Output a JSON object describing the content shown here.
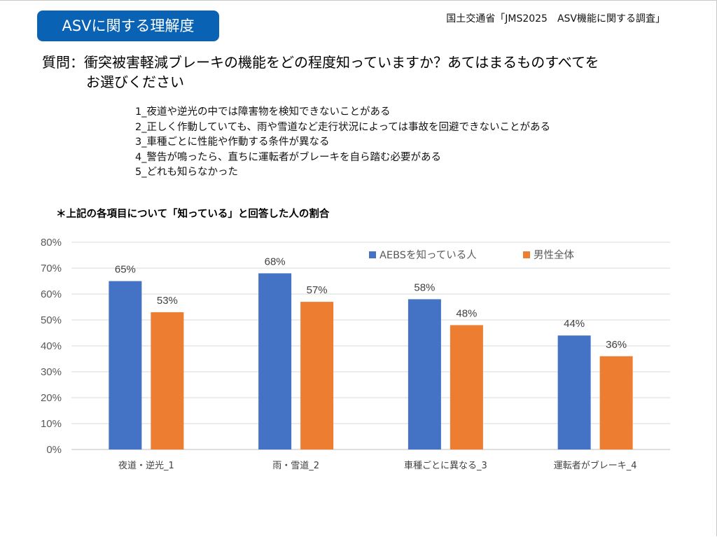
{
  "header": {
    "badge": "ASVに関する理解度",
    "source": "国土交通省「JMS2025　ASV機能に関する調査」"
  },
  "question": {
    "line1": "質問：衝突被害軽減ブレーキの機能をどの程度知っていますか？あてはまるものすべてを",
    "line2": "お選びください"
  },
  "options": [
    "1_夜道や逆光の中では障害物を検知できないことがある",
    "2_正しく作動していても、雨や雪道など走行状況によっては事故を回避できないことがある",
    "3_車種ごとに性能や作動する条件が異なる",
    "4_警告が鳴ったら、直ちに運転者がブレーキを自ら踏む必要がある",
    "5_どれも知らなかった"
  ],
  "note": "＊上記の各項目について「知っている」と回答した人の割合",
  "chart_data": {
    "type": "bar",
    "categories": [
      "夜道・逆光_1",
      "雨・雪道_2",
      "車種ごとに異なる_3",
      "運転者がブレーキ_4"
    ],
    "series": [
      {
        "name": "AEBSを知っている人",
        "values": [
          65,
          68,
          58,
          44
        ],
        "color": "#4472c4"
      },
      {
        "name": "男性全体",
        "values": [
          53,
          57,
          48,
          36
        ],
        "color": "#ed7d31"
      }
    ],
    "data_labels": [
      [
        "65%",
        "68%",
        "58%",
        "44%"
      ],
      [
        "53%",
        "57%",
        "48%",
        "36%"
      ]
    ],
    "yticks": [
      "0%",
      "10%",
      "20%",
      "30%",
      "40%",
      "50%",
      "60%",
      "70%",
      "80%"
    ],
    "ylim": [
      0,
      80
    ],
    "grid": true,
    "legend_position": "top-right"
  }
}
